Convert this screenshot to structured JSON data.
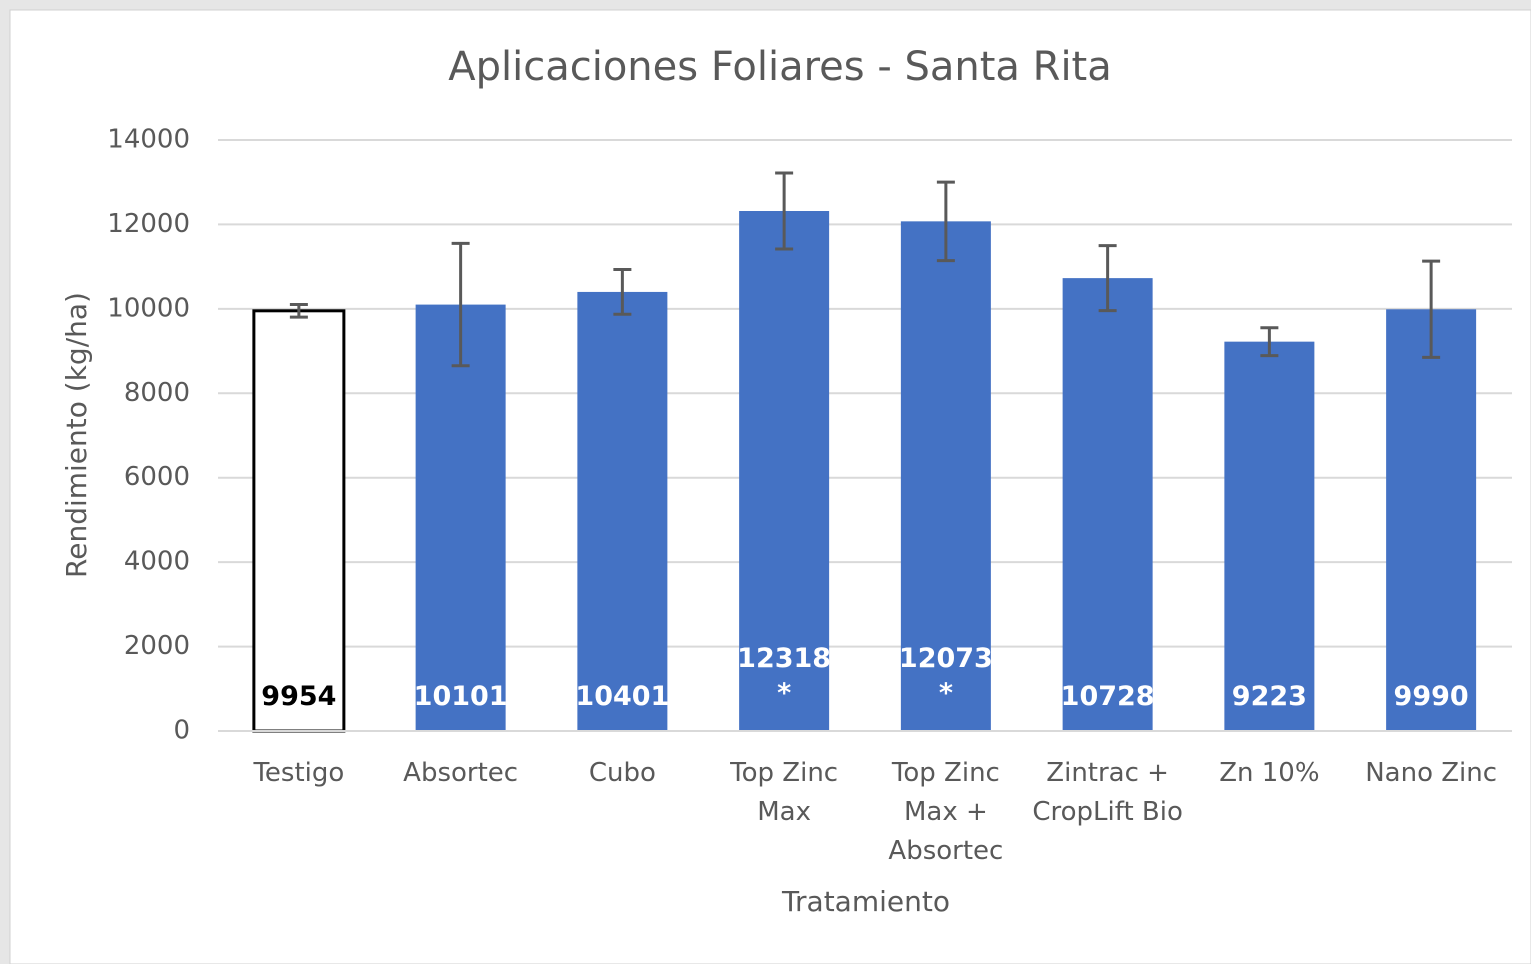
{
  "chart_data": {
    "type": "bar",
    "title": "Aplicaciones Foliares - Santa Rita",
    "xlabel": "Tratamiento",
    "ylabel": "Rendimiento (kg/ha)",
    "categories": [
      "Testigo",
      "Absortec",
      "Cubo",
      "Top Zinc\nMax",
      "Top Zinc\nMax +\nAbsortec",
      "Zintrac +\nCropLift Bio",
      "Zn 10%",
      "Nano Zinc"
    ],
    "values": [
      9954,
      10101,
      10401,
      12318,
      12073,
      10728,
      9223,
      9990
    ],
    "value_labels": [
      "9954",
      "10101",
      "10401",
      "12318\n*",
      "12073\n*",
      "10728",
      "9223",
      "9990"
    ],
    "errors": [
      150,
      1450,
      530,
      900,
      930,
      770,
      330,
      1140
    ],
    "colors": [
      "#ffffff",
      "#4472c4",
      "#4472c4",
      "#4472c4",
      "#4472c4",
      "#4472c4",
      "#4472c4",
      "#4472c4"
    ],
    "edge_colors": [
      "#000000",
      null,
      null,
      null,
      null,
      null,
      null,
      null
    ],
    "error_color": "#595959",
    "ylim": [
      0,
      14000
    ],
    "yticks": [
      0,
      2000,
      4000,
      6000,
      8000,
      10000,
      12000,
      14000
    ],
    "grid": true
  }
}
